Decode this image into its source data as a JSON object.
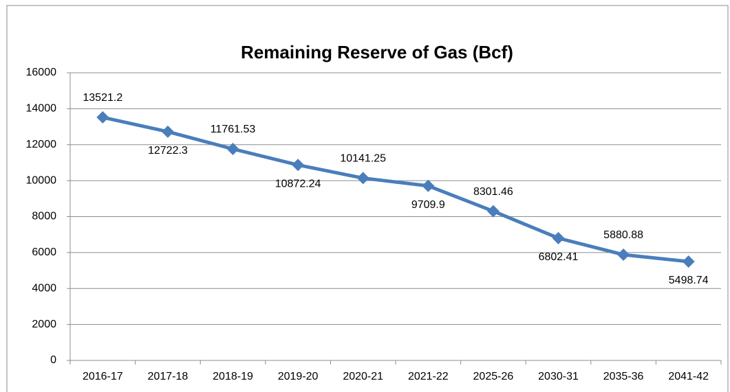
{
  "chart_data": {
    "type": "line",
    "title": "Remaining Reserve of Gas (Bcf)",
    "categories": [
      "2016-17",
      "2017-18",
      "2018-19",
      "2019-20",
      "2020-21",
      "2021-22",
      "2025-26",
      "2030-31",
      "2035-36",
      "2041-42"
    ],
    "values": [
      13521.2,
      12722.3,
      11761.53,
      10872.24,
      10141.25,
      9709.9,
      8301.46,
      6802.41,
      5880.88,
      5498.74
    ],
    "color": "#4a7ebb",
    "ylim": [
      0,
      16000
    ],
    "yticks": [
      0,
      2000,
      4000,
      6000,
      8000,
      10000,
      12000,
      14000,
      16000
    ],
    "grid": true
  }
}
